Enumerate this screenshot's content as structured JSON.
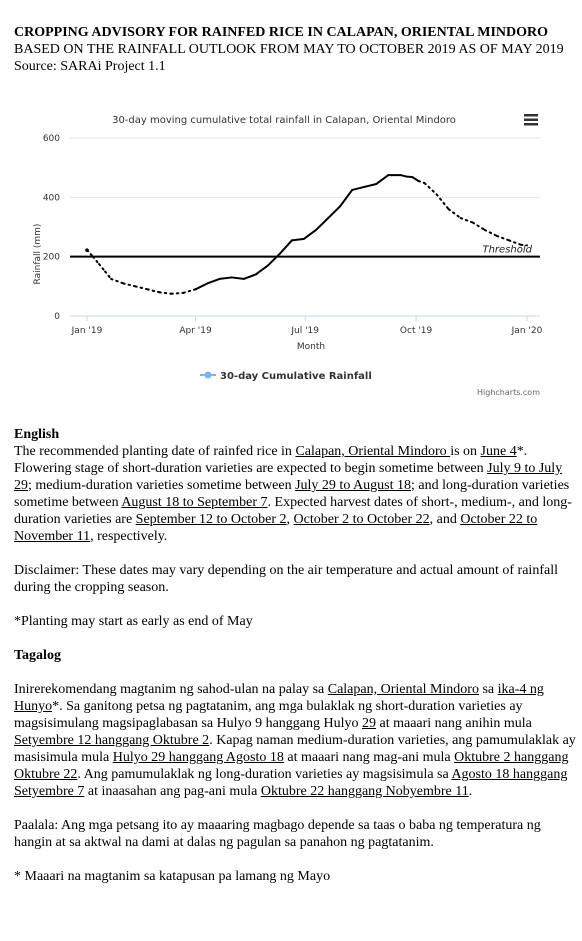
{
  "header": {
    "title": "CROPPING ADVISORY FOR RAINFED RICE IN CALAPAN, ORIENTAL MINDORO",
    "subtitle": "BASED ON THE RAINFALL OUTLOOK FROM MAY TO OCTOBER 2019 AS OF MAY 2019",
    "source": "Source: SARAi Project 1.1"
  },
  "chart_data": {
    "type": "line",
    "title": "30-day moving cumulative total rainfall in Calapan, Oriental Mindoro",
    "xlabel": "Month",
    "ylabel": "Rainfall (mm)",
    "ylim": [
      0,
      600
    ],
    "yticks": [
      "0",
      "200",
      "400",
      "600"
    ],
    "xticks": [
      "Jan '19",
      "Apr '19",
      "Jul '19",
      "Oct '19",
      "Jan '20"
    ],
    "threshold": {
      "value": 200,
      "label": "Threshold"
    },
    "legend": "30-day Cumulative Rainfall",
    "credit": "Highcharts.com",
    "series": [
      {
        "name": "30-day Cumulative Rainfall",
        "x_days": [
          0,
          5,
          10,
          15,
          20,
          30,
          40,
          50,
          60,
          70,
          80,
          90,
          100,
          110,
          120,
          130,
          140,
          150,
          160,
          170,
          180,
          190,
          200,
          210,
          220,
          230,
          240,
          250,
          260,
          265,
          270,
          275,
          280,
          290,
          300,
          310,
          320,
          330,
          340,
          350,
          360,
          365
        ],
        "values": [
          222,
          200,
          175,
          150,
          125,
          110,
          100,
          90,
          80,
          75,
          78,
          90,
          110,
          125,
          130,
          125,
          140,
          170,
          210,
          255,
          260,
          290,
          330,
          370,
          425,
          435,
          445,
          475,
          475,
          470,
          468,
          455,
          448,
          410,
          360,
          330,
          315,
          290,
          270,
          255,
          240,
          238
        ],
        "solid_range": [
          90,
          275
        ]
      }
    ]
  },
  "english": {
    "heading": "English",
    "p1_a": "The recommended planting date of rainfed rice in ",
    "p1_loc": "Calapan, Oriental Mindoro ",
    "p1_b": "is on ",
    "p1_date": "June 4",
    "p1_c": "*. Flowering stage of short-duration varieties are expected to begin sometime between ",
    "p1_s": "July 9 to July 29",
    "p1_d": "; medium-duration varieties sometime between ",
    "p1_m": "July 29 to August 18",
    "p1_e": "; and long-duration varieties sometime between ",
    "p1_l": "August 18 to September 7",
    "p1_f": ". Expected harvest dates of short-, medium-, and long-duration varieties are ",
    "p1_h1": "September 12 to October 2",
    "p1_g": ", ",
    "p1_h2": "October 2 to October 22",
    "p1_h": ", and ",
    "p1_h3": "October 22 to November 11",
    "p1_i": ", respectively.",
    "disclaimer": "Disclaimer: These dates may vary depending on the air temperature and actual amount of rainfall during the cropping season.",
    "note": "*Planting may start as early as end of May"
  },
  "tagalog": {
    "heading": "Tagalog",
    "p1_a": "Inirerekomendang magtanim ng sahod-ulan na palay sa ",
    "p1_loc": "Calapan, Oriental Mindoro",
    "p1_b": " sa ",
    "p1_date": "ika-4 ng Hunyo",
    "p1_c": "*. Sa ganitong petsa ng pagtatanim, ang mga bulaklak ng short-duration varieties ay magsisimulang magsipaglabasan sa Hulyo 9 hanggang Hulyo ",
    "p1_s": "29",
    "p1_d": " at maaari nang anihin mula ",
    "p1_sh": "Setyembre 12 hanggang Oktubre 2",
    "p1_e": ". Kapag naman medium-duration varieties, ang pamumulaklak ay masisimula mula ",
    "p1_m": "Hulyo 29 hanggang Agosto 18",
    "p1_f": " at maaari nang mag-ani mula ",
    "p1_mh": "Oktubre 2 hanggang Oktubre 22",
    "p1_g": ". Ang pamumulaklak ng long-duration varieties ay magsisimula sa ",
    "p1_l": "Agosto 18 hanggang Setyembre 7",
    "p1_h": " at inaasahan ang pag-ani mula ",
    "p1_lh": "Oktubre 22 hanggang Nobyembre 11",
    "p1_i": ".",
    "disclaimer": "Paalala: Ang mga petsang ito ay maaaring magbago depende sa taas o baba ng temperatura ng hangin at sa aktwal na dami at dalas ng pagulan sa panahon ng pagtatanim.",
    "note": "* Maaari na magtanim sa katapusan pa lamang ng Mayo"
  },
  "colors": {
    "series": "#000000",
    "legend_marker": "#7cb5ec",
    "grid": "#e6e6e6",
    "axis_text": "#333333"
  }
}
